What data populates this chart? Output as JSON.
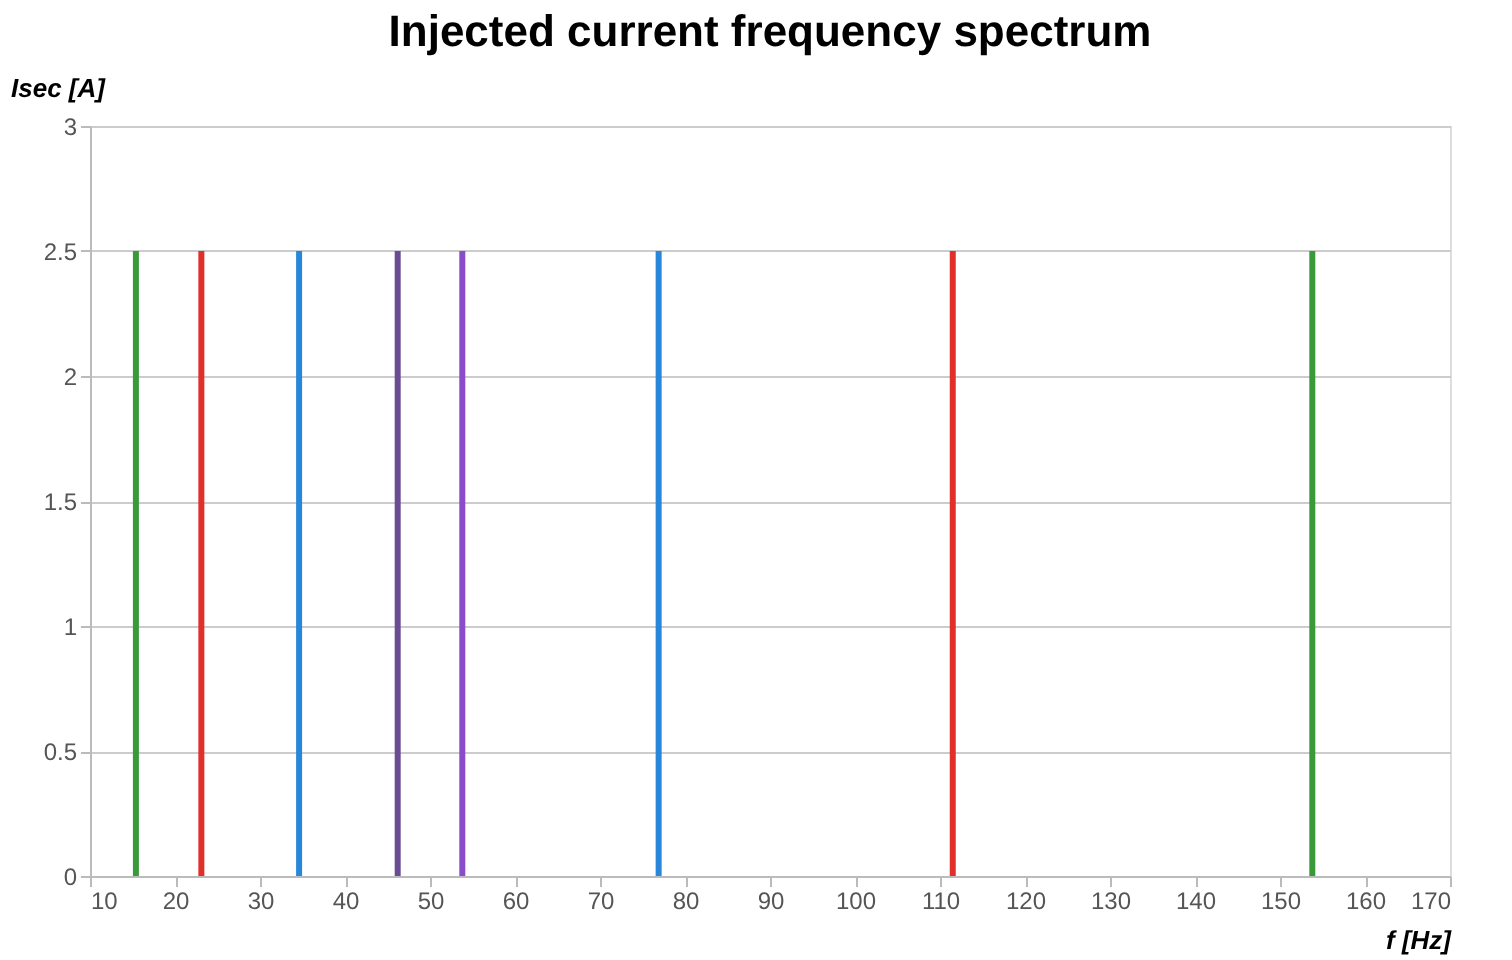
{
  "chart_data": {
    "type": "bar",
    "title": "Injected current frequency spectrum",
    "xlabel": "f [Hz]",
    "ylabel": "Isec [A]",
    "x": [
      15.4,
      23.1,
      34.6,
      46.2,
      53.8,
      76.9,
      111.5,
      153.8
    ],
    "values": [
      2.5,
      2.5,
      2.5,
      2.5,
      2.5,
      2.5,
      2.5,
      2.5
    ],
    "colors": [
      "#3a9a3a",
      "#e0302a",
      "#2a86d8",
      "#6a4c93",
      "#8a4cc8",
      "#2a86d8",
      "#e0302a",
      "#3a9a3a"
    ],
    "xlim": [
      10,
      170
    ],
    "xticks": [
      10,
      20,
      30,
      40,
      50,
      60,
      70,
      80,
      90,
      100,
      110,
      120,
      130,
      140,
      150,
      160,
      170
    ],
    "ylim": [
      0,
      3
    ],
    "yticks": [
      0,
      0.5,
      1,
      1.5,
      2,
      2.5,
      3
    ],
    "grid": "y"
  }
}
